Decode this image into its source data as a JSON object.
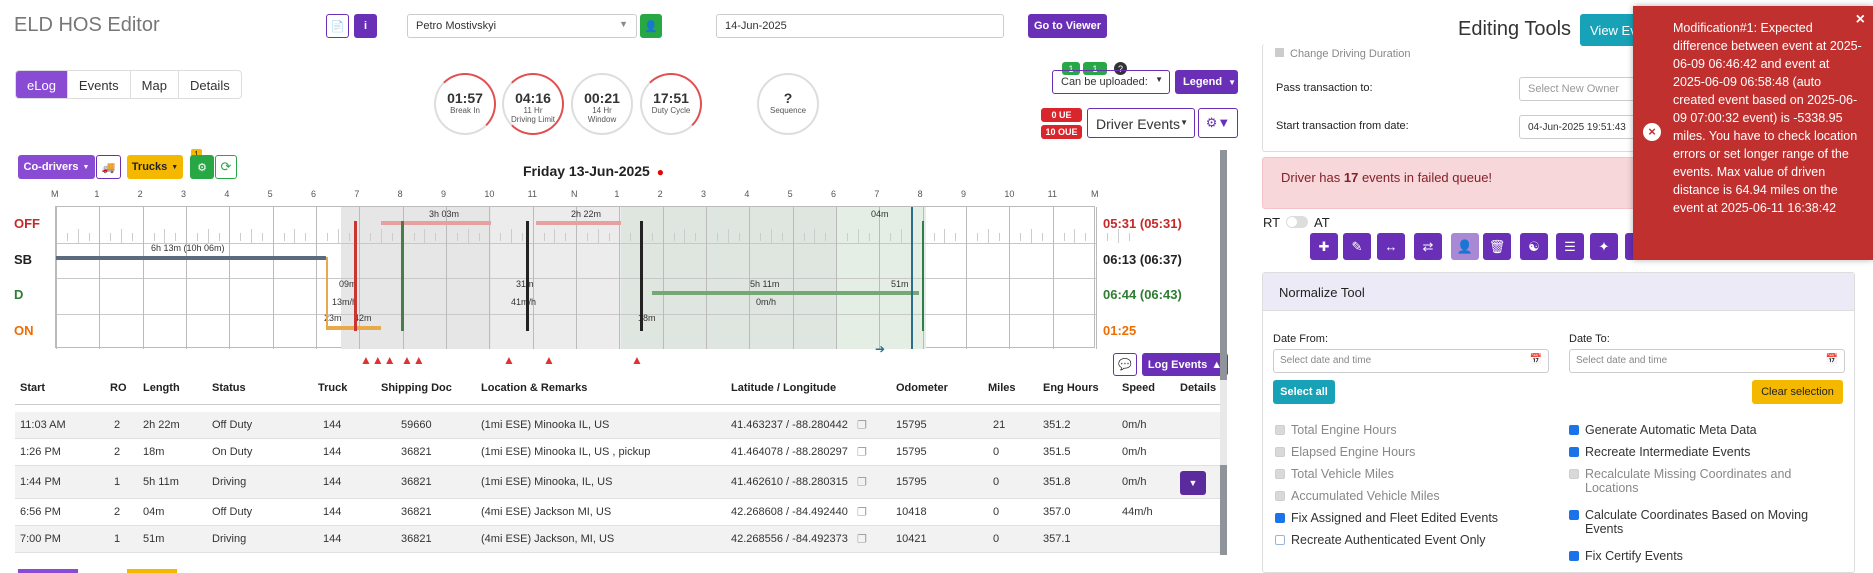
{
  "app": {
    "title": "ELD HOS Editor"
  },
  "header": {
    "driver": "Petro Mostivskyi",
    "date": "14-Jun-2025",
    "go_viewer": "Go to Viewer",
    "editing_tools": "Editing Tools",
    "view_btn": "View Ev"
  },
  "tabs": [
    "eLog",
    "Events",
    "Map",
    "Details"
  ],
  "dials": [
    {
      "value": "01:57",
      "label1": "Break In",
      "label2": "",
      "level": 0.25
    },
    {
      "value": "04:16",
      "label1": "11 Hr",
      "label2": "Driving Limit",
      "level": 0.4
    },
    {
      "value": "00:21",
      "label1": "14 Hr",
      "label2": "Window",
      "level": 0.02
    },
    {
      "value": "17:51",
      "label1": "Duty Cycle",
      "label2": "",
      "level": 0.35
    },
    {
      "value": "?",
      "label1": "Sequence",
      "label2": "",
      "level": 0
    }
  ],
  "right_controls": {
    "upload_badge1": "1",
    "upload_badge2": "1",
    "upload_q": "?",
    "can_upload": "Can be uploaded:",
    "legend": "Legend",
    "oue1": "0 UE",
    "oue2": "10 OUE",
    "driver_events": "Driver Events"
  },
  "chart_controls": {
    "co_drivers": "Co-drivers",
    "trucks": "Trucks",
    "badge": "1"
  },
  "graph": {
    "title": "Friday 13-Jun-2025",
    "hours": [
      "M",
      "1",
      "2",
      "3",
      "4",
      "5",
      "6",
      "7",
      "8",
      "9",
      "10",
      "11",
      "N",
      "1",
      "2",
      "3",
      "4",
      "5",
      "6",
      "7",
      "8",
      "9",
      "10",
      "11",
      "M"
    ],
    "statuses": [
      "OFF",
      "SB",
      "D",
      "ON"
    ],
    "totals": [
      "05:31 (05:31)",
      "06:13 (06:37)",
      "06:44 (06:43)",
      "01:25"
    ],
    "labels": {
      "sb_span": "6h 13m (10h 06m)",
      "off_a": "3h 03m",
      "off_b": "2h 22m",
      "off_c": "04m",
      "d_a": "09m",
      "d_a2": "13m/h",
      "d_b": "31m",
      "d_b2": "41m/h",
      "d_c": "5h 11m",
      "d_c2": "0m/h",
      "d_d": "51m",
      "on_a": "23m",
      "on_b": "42m",
      "on_c": "18m"
    },
    "log_events": "Log Events"
  },
  "table": {
    "headers": [
      "Start",
      "RO",
      "Length",
      "Status",
      "Truck",
      "Shipping Doc",
      "Location & Remarks",
      "Latitude / Longitude",
      "Odometer",
      "Miles",
      "Eng Hours",
      "Speed",
      "Details"
    ],
    "rows": [
      {
        "start": "11:03 AM",
        "ro": "2",
        "length": "2h 22m",
        "status": "Off Duty",
        "truck": "144",
        "doc": "59660",
        "loc": "(1mi ESE) Minooka IL, US",
        "latlng": "41.463237 / -88.280442",
        "odo": "15795",
        "miles": "21",
        "eng": "351.2",
        "speed": "0m/h"
      },
      {
        "start": "1:26 PM",
        "ro": "2",
        "length": "18m",
        "status": "On Duty",
        "truck": "144",
        "doc": "36821",
        "loc": "(1mi ESE) Minooka IL, US , pickup",
        "latlng": "41.464078 / -88.280297",
        "odo": "15795",
        "miles": "0",
        "eng": "351.5",
        "speed": "0m/h"
      },
      {
        "start": "1:44 PM",
        "ro": "1",
        "length": "5h 11m",
        "status": "Driving",
        "truck": "144",
        "doc": "36821",
        "loc": "(1mi ESE) Minooka, IL, US",
        "latlng": "41.462610 / -88.280315",
        "odo": "15795",
        "miles": "0",
        "eng": "351.8",
        "speed": "0m/h"
      },
      {
        "start": "6:56 PM",
        "ro": "2",
        "length": "04m",
        "status": "Off Duty",
        "truck": "144",
        "doc": "36821",
        "loc": "(4mi ESE) Jackson MI, US",
        "latlng": "42.268608 / -84.492440",
        "odo": "10418",
        "miles": "0",
        "eng": "357.0",
        "speed": "44m/h"
      },
      {
        "start": "7:00 PM",
        "ro": "1",
        "length": "51m",
        "status": "Driving",
        "truck": "144",
        "doc": "36821",
        "loc": "(4mi ESE) Jackson, MI, US",
        "latlng": "42.268556 / -84.492373",
        "odo": "10421",
        "miles": "0",
        "eng": "357.1",
        "speed": ""
      }
    ]
  },
  "side": {
    "change_duration": "Change Driving Duration",
    "pass_label": "Pass transaction to:",
    "pass_placeholder": "Select New Owner",
    "start_label": "Start transaction from date:",
    "start_value": "04-Jun-2025 19:51:43",
    "failed_pre": "Driver has ",
    "failed_count": "17",
    "failed_post": " events in failed queue!",
    "rt": "RT",
    "at": "AT",
    "normalize_title": "Normalize Tool",
    "date_from": "Date From:",
    "date_to": "Date To:",
    "date_placeholder": "Select date and time",
    "select_all": "Select all",
    "clear_selection": "Clear selection",
    "left_checks": [
      {
        "label": "Total Engine Hours",
        "state": "dis"
      },
      {
        "label": "Elapsed Engine Hours",
        "state": "dis"
      },
      {
        "label": "Total Vehicle Miles",
        "state": "dis"
      },
      {
        "label": "Accumulated Vehicle Miles",
        "state": "dis"
      },
      {
        "label": "Fix Assigned and Fleet Edited Events",
        "state": "on"
      },
      {
        "label": "Recreate Authenticated Event Only",
        "state": "off"
      }
    ],
    "right_checks": [
      {
        "label": "Generate Automatic Meta Data",
        "state": "on"
      },
      {
        "label": "Recreate Intermediate Events",
        "state": "on"
      },
      {
        "label": "Recalculate Missing Coordinates and",
        "label2": "Locations",
        "state": "dis"
      },
      {
        "label": "Calculate Coordinates Based on Moving",
        "label2": "Events",
        "state": "on"
      },
      {
        "label": "Fix Certify Events",
        "state": "on"
      }
    ]
  },
  "toast": {
    "text": "Modification#1: Expected difference between event at 2025-06-09 06:46:42 and event at 2025-06-09 06:58:48 (auto created event based on 2025-06-09 07:00:32 event) is -5338.95 miles. You have to check location errors or set longer range of the events. Max value of driven distance is 64.94 miles on the event at 2025-06-11 16:38:42",
    "close": "×"
  }
}
